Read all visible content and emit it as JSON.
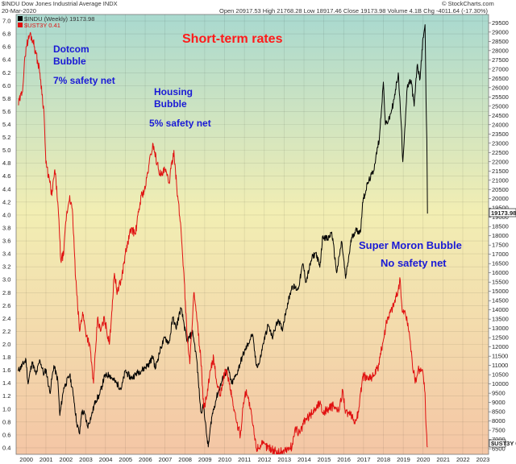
{
  "header": {
    "symbol_title": "$INDU Dow Jones Industrial Average INDX",
    "date": "20-Mar-2020",
    "ohlc": "Open 20917.53  High 21768.28  Low 18917.46  Close 19173.98  Volume 4.1B  Chg -4011.64 (-17.30%)",
    "watermark": "© StockCharts.com",
    "legend_dow": "$INDU (Weekly) 19173.98",
    "legend_ust": "$UST3Y 0.41"
  },
  "annotations": {
    "title": "Short-term rates",
    "dotcom_1": "Dotcom",
    "dotcom_2": "Bubble",
    "dotcom_net": "7% safety net",
    "housing_1": "Housing",
    "housing_2": "Bubble",
    "housing_net": "5% safety net",
    "super_1": "Super Moron Bubble",
    "super_2": "No safety net"
  },
  "colors": {
    "dow_line": "#000000",
    "rate_line": "#e01010",
    "annotation_blue": "#1a1ad6",
    "annotation_red": "#ff1a1a",
    "bg_top": "#a9d9cf",
    "bg_mid": "#f2eeb3",
    "bg_bottom": "#f4c6a5"
  },
  "chart_data": {
    "type": "line",
    "x_tick_labels": [
      "2000",
      "2001",
      "2002",
      "2003",
      "2004",
      "2005",
      "2006",
      "2007",
      "2008",
      "2009",
      "2010",
      "2011",
      "2012",
      "2013",
      "2014",
      "2015",
      "2016",
      "2017",
      "2018",
      "2019",
      "2020",
      "2021",
      "2022",
      "2023"
    ],
    "xlim": [
      1999.5,
      2023.3
    ],
    "y_left": {
      "ticks": [
        0.4,
        0.6,
        0.8,
        1.0,
        1.2,
        1.4,
        1.6,
        1.8,
        2.0,
        2.2,
        2.4,
        2.6,
        2.8,
        3.0,
        3.2,
        3.4,
        3.6,
        3.8,
        4.0,
        4.2,
        4.4,
        4.6,
        4.8,
        5.0,
        5.2,
        5.4,
        5.6,
        5.8,
        6.0,
        6.2,
        6.4,
        6.6,
        6.8,
        7.0
      ],
      "range": [
        0.3,
        7.1
      ]
    },
    "y_right": {
      "ticks": [
        6500,
        7000,
        7500,
        8000,
        8500,
        9000,
        9500,
        10000,
        10500,
        11000,
        11500,
        12000,
        12500,
        13000,
        13500,
        14000,
        14500,
        15000,
        15500,
        16000,
        16500,
        17000,
        17500,
        18000,
        18500,
        19000,
        19500,
        20000,
        20500,
        21000,
        21500,
        22000,
        22500,
        23000,
        23500,
        24000,
        24500,
        25000,
        25500,
        26000,
        26500,
        27000,
        27500,
        28000,
        28500,
        29000,
        29500
      ],
      "range": [
        6200,
        29950
      ],
      "last_value_label": "19173.98"
    },
    "series": [
      {
        "name": "$INDU (Weekly)",
        "axis": "right",
        "points": [
          [
            1999.6,
            10700
          ],
          [
            2000.0,
            11300
          ],
          [
            2000.1,
            10000
          ],
          [
            2000.3,
            11200
          ],
          [
            2000.5,
            10500
          ],
          [
            2000.7,
            11300
          ],
          [
            2000.9,
            10500
          ],
          [
            2001.0,
            10800
          ],
          [
            2001.2,
            9500
          ],
          [
            2001.4,
            11000
          ],
          [
            2001.6,
            10200
          ],
          [
            2001.7,
            8300
          ],
          [
            2001.9,
            9800
          ],
          [
            2002.0,
            10000
          ],
          [
            2002.2,
            10500
          ],
          [
            2002.4,
            9300
          ],
          [
            2002.55,
            7900
          ],
          [
            2002.7,
            7300
          ],
          [
            2002.8,
            8500
          ],
          [
            2002.95,
            8400
          ],
          [
            2003.1,
            7700
          ],
          [
            2003.3,
            8300
          ],
          [
            2003.5,
            9100
          ],
          [
            2003.7,
            9400
          ],
          [
            2003.95,
            10400
          ],
          [
            2004.2,
            10500
          ],
          [
            2004.5,
            10100
          ],
          [
            2004.8,
            9750
          ],
          [
            2005.0,
            10700
          ],
          [
            2005.3,
            10300
          ],
          [
            2005.6,
            10600
          ],
          [
            2005.9,
            10800
          ],
          [
            2006.2,
            11100
          ],
          [
            2006.4,
            11500
          ],
          [
            2006.5,
            10800
          ],
          [
            2006.8,
            12000
          ],
          [
            2007.0,
            12500
          ],
          [
            2007.2,
            12200
          ],
          [
            2007.4,
            13600
          ],
          [
            2007.55,
            13000
          ],
          [
            2007.8,
            14100
          ],
          [
            2007.95,
            13300
          ],
          [
            2008.1,
            12300
          ],
          [
            2008.4,
            12800
          ],
          [
            2008.6,
            11300
          ],
          [
            2008.8,
            8500
          ],
          [
            2008.95,
            8800
          ],
          [
            2009.1,
            7200
          ],
          [
            2009.18,
            6600
          ],
          [
            2009.35,
            8200
          ],
          [
            2009.6,
            9300
          ],
          [
            2009.95,
            10400
          ],
          [
            2010.2,
            10800
          ],
          [
            2010.35,
            10000
          ],
          [
            2010.6,
            10500
          ],
          [
            2010.9,
            11500
          ],
          [
            2011.2,
            12200
          ],
          [
            2011.4,
            12700
          ],
          [
            2011.6,
            11000
          ],
          [
            2011.75,
            11100
          ],
          [
            2011.95,
            12200
          ],
          [
            2012.2,
            13200
          ],
          [
            2012.4,
            12500
          ],
          [
            2012.7,
            13500
          ],
          [
            2012.9,
            12900
          ],
          [
            2013.1,
            14000
          ],
          [
            2013.4,
            15300
          ],
          [
            2013.7,
            15100
          ],
          [
            2013.95,
            16500
          ],
          [
            2014.1,
            15500
          ],
          [
            2014.4,
            16800
          ],
          [
            2014.6,
            17100
          ],
          [
            2014.8,
            16300
          ],
          [
            2014.95,
            18000
          ],
          [
            2015.2,
            17800
          ],
          [
            2015.4,
            18200
          ],
          [
            2015.65,
            16000
          ],
          [
            2015.9,
            17700
          ],
          [
            2016.1,
            15700
          ],
          [
            2016.4,
            17900
          ],
          [
            2016.6,
            18300
          ],
          [
            2016.85,
            18200
          ],
          [
            2016.95,
            19800
          ],
          [
            2017.2,
            20800
          ],
          [
            2017.5,
            21500
          ],
          [
            2017.8,
            23300
          ],
          [
            2018.0,
            26300
          ],
          [
            2018.1,
            24000
          ],
          [
            2018.3,
            24300
          ],
          [
            2018.55,
            25400
          ],
          [
            2018.75,
            26800
          ],
          [
            2018.9,
            24000
          ],
          [
            2018.98,
            22000
          ],
          [
            2019.2,
            26000
          ],
          [
            2019.4,
            26400
          ],
          [
            2019.55,
            25000
          ],
          [
            2019.7,
            27200
          ],
          [
            2019.85,
            26500
          ],
          [
            2020.0,
            28700
          ],
          [
            2020.1,
            29400
          ],
          [
            2020.15,
            25400
          ],
          [
            2020.19,
            23200
          ],
          [
            2020.22,
            19200
          ]
        ]
      },
      {
        "name": "$UST3Y",
        "axis": "left",
        "points": [
          [
            1999.6,
            5.7
          ],
          [
            1999.8,
            5.9
          ],
          [
            2000.0,
            6.6
          ],
          [
            2000.2,
            6.8
          ],
          [
            2000.35,
            6.7
          ],
          [
            2000.5,
            6.5
          ],
          [
            2000.7,
            6.2
          ],
          [
            2000.9,
            5.6
          ],
          [
            2001.0,
            4.8
          ],
          [
            2001.2,
            4.5
          ],
          [
            2001.3,
            4.3
          ],
          [
            2001.45,
            4.7
          ],
          [
            2001.6,
            4.2
          ],
          [
            2001.75,
            3.3
          ],
          [
            2001.9,
            3.4
          ],
          [
            2002.0,
            3.9
          ],
          [
            2002.2,
            4.3
          ],
          [
            2002.35,
            4.0
          ],
          [
            2002.5,
            3.0
          ],
          [
            2002.7,
            2.2
          ],
          [
            2002.85,
            2.5
          ],
          [
            2003.0,
            2.2
          ],
          [
            2003.2,
            2.0
          ],
          [
            2003.4,
            1.4
          ],
          [
            2003.5,
            1.9
          ],
          [
            2003.6,
            2.4
          ],
          [
            2003.75,
            2.2
          ],
          [
            2003.95,
            2.4
          ],
          [
            2004.2,
            2.0
          ],
          [
            2004.45,
            3.1
          ],
          [
            2004.6,
            2.8
          ],
          [
            2004.8,
            3.0
          ],
          [
            2005.0,
            3.4
          ],
          [
            2005.3,
            3.8
          ],
          [
            2005.5,
            3.7
          ],
          [
            2005.8,
            4.3
          ],
          [
            2006.0,
            4.4
          ],
          [
            2006.2,
            4.8
          ],
          [
            2006.4,
            5.1
          ],
          [
            2006.6,
            4.8
          ],
          [
            2006.8,
            4.6
          ],
          [
            2007.0,
            4.7
          ],
          [
            2007.2,
            4.5
          ],
          [
            2007.45,
            5.0
          ],
          [
            2007.6,
            4.4
          ],
          [
            2007.8,
            3.8
          ],
          [
            2007.95,
            3.1
          ],
          [
            2008.1,
            2.2
          ],
          [
            2008.25,
            1.7
          ],
          [
            2008.45,
            2.8
          ],
          [
            2008.6,
            2.4
          ],
          [
            2008.8,
            1.8
          ],
          [
            2008.95,
            1.0
          ],
          [
            2009.1,
            1.2
          ],
          [
            2009.3,
            1.6
          ],
          [
            2009.45,
            1.8
          ],
          [
            2009.6,
            1.4
          ],
          [
            2009.8,
            1.2
          ],
          [
            2009.95,
            1.5
          ],
          [
            2010.1,
            1.6
          ],
          [
            2010.3,
            1.3
          ],
          [
            2010.6,
            0.8
          ],
          [
            2010.8,
            0.6
          ],
          [
            2010.95,
            1.1
          ],
          [
            2011.1,
            1.3
          ],
          [
            2011.3,
            1.0
          ],
          [
            2011.6,
            0.4
          ],
          [
            2011.9,
            0.45
          ],
          [
            2012.3,
            0.4
          ],
          [
            2012.6,
            0.33
          ],
          [
            2012.9,
            0.35
          ],
          [
            2013.2,
            0.38
          ],
          [
            2013.4,
            0.42
          ],
          [
            2013.55,
            0.7
          ],
          [
            2013.8,
            0.62
          ],
          [
            2014.0,
            0.8
          ],
          [
            2014.3,
            0.9
          ],
          [
            2014.55,
            1.0
          ],
          [
            2014.8,
            1.1
          ],
          [
            2014.95,
            0.95
          ],
          [
            2015.2,
            1.0
          ],
          [
            2015.5,
            1.05
          ],
          [
            2015.75,
            0.95
          ],
          [
            2015.95,
            1.3
          ],
          [
            2016.1,
            0.95
          ],
          [
            2016.35,
            0.9
          ],
          [
            2016.55,
            0.8
          ],
          [
            2016.75,
            0.95
          ],
          [
            2016.95,
            1.5
          ],
          [
            2017.2,
            1.5
          ],
          [
            2017.5,
            1.5
          ],
          [
            2017.75,
            1.65
          ],
          [
            2017.95,
            2.0
          ],
          [
            2018.2,
            2.4
          ],
          [
            2018.5,
            2.6
          ],
          [
            2018.75,
            2.85
          ],
          [
            2018.85,
            3.0
          ],
          [
            2018.95,
            2.5
          ],
          [
            2019.1,
            2.5
          ],
          [
            2019.3,
            2.2
          ],
          [
            2019.45,
            1.75
          ],
          [
            2019.6,
            1.4
          ],
          [
            2019.75,
            1.6
          ],
          [
            2019.9,
            1.6
          ],
          [
            2020.0,
            1.55
          ],
          [
            2020.1,
            1.25
          ],
          [
            2020.15,
            0.75
          ],
          [
            2020.22,
            0.41
          ]
        ]
      }
    ]
  }
}
